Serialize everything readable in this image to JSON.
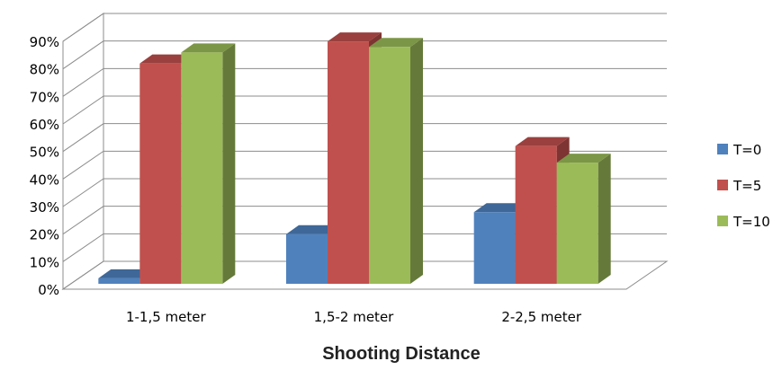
{
  "chart_data": {
    "type": "bar",
    "style": "3d-clustered-column",
    "categories": [
      "1-1,5 meter",
      "1,5-2 meter",
      "2-2,5 meter"
    ],
    "series": [
      {
        "name": "T=0",
        "values": [
          2,
          18,
          26
        ],
        "color": "#4F81BD"
      },
      {
        "name": "T=5",
        "values": [
          80,
          88,
          50
        ],
        "color": "#C0504D"
      },
      {
        "name": "T=10",
        "values": [
          84,
          86,
          44
        ],
        "color": "#9BBB59"
      }
    ],
    "y_ticks": [
      "0%",
      "10%",
      "20%",
      "30%",
      "40%",
      "50%",
      "60%",
      "70%",
      "80%",
      "90%"
    ],
    "ylim": [
      0,
      90
    ],
    "y_unit": "%",
    "xlabel": "Shooting Distance",
    "ylabel": "",
    "title": "",
    "grid": true,
    "legend_position": "right"
  }
}
